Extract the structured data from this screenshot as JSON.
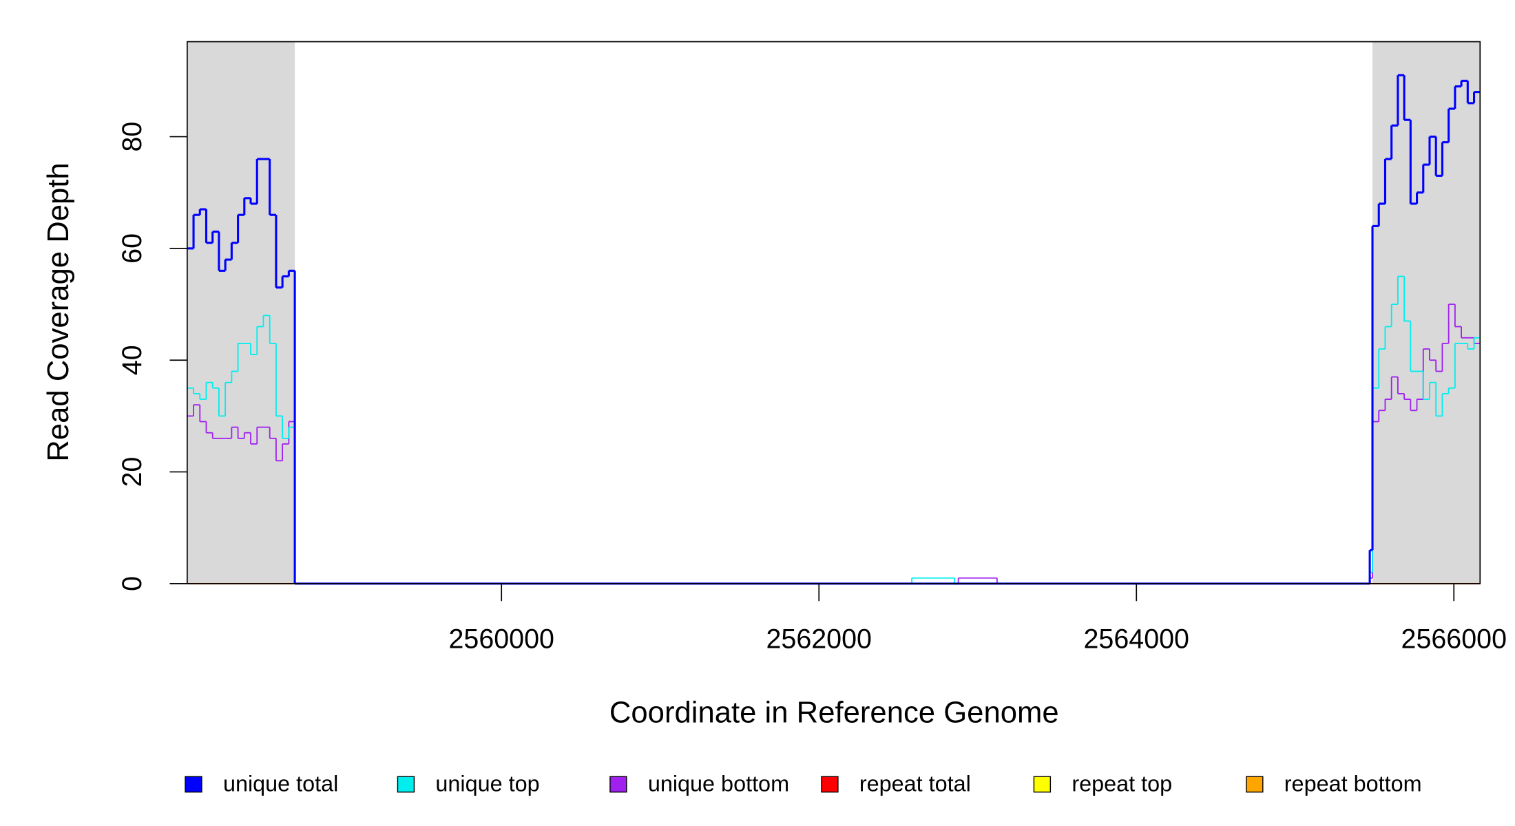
{
  "chart_data": {
    "type": "step",
    "xlabel": "Coordinate in Reference Genome",
    "ylabel": "Read Coverage Depth",
    "xlim": [
      2558020,
      2566165
    ],
    "ylim": [
      0,
      97
    ],
    "xticks": [
      2560000,
      2562000,
      2564000,
      2566000
    ],
    "yticks": [
      0,
      20,
      40,
      60,
      80
    ],
    "shaded_regions": [
      [
        2558020,
        2558698
      ],
      [
        2565487,
        2566165
      ]
    ],
    "shade_color": "#d9d9d9",
    "legend": "bottom",
    "x": [
      2558020,
      2558060,
      2558100,
      2558140,
      2558180,
      2558220,
      2558260,
      2558300,
      2558340,
      2558380,
      2558420,
      2558460,
      2558500,
      2558540,
      2558580,
      2558620,
      2558660,
      2558698,
      2562585,
      2562854,
      2562878,
      2563122,
      2565470,
      2565487,
      2565527,
      2565567,
      2565607,
      2565647,
      2565687,
      2565727,
      2565767,
      2565807,
      2565847,
      2565887,
      2565927,
      2565967,
      2566007,
      2566047,
      2566087,
      2566127
    ],
    "series": [
      {
        "name": "unique total",
        "color": "#0000ff",
        "width": 2.2,
        "values": [
          60,
          66,
          67,
          61,
          63,
          56,
          58,
          61,
          66,
          69,
          68,
          76,
          76,
          66,
          53,
          55,
          56,
          0,
          0,
          0,
          0,
          0,
          6,
          64,
          68,
          76,
          82,
          91,
          83,
          68,
          70,
          75,
          80,
          73,
          79,
          85,
          89,
          90,
          86,
          88
        ]
      },
      {
        "name": "unique top",
        "color": "#00eeee",
        "width": 1.3,
        "values": [
          35,
          34,
          33,
          36,
          35,
          30,
          36,
          38,
          43,
          43,
          41,
          46,
          48,
          43,
          30,
          26,
          28,
          0,
          1,
          0,
          0,
          0,
          2,
          35,
          42,
          46,
          50,
          55,
          47,
          38,
          38,
          33,
          36,
          30,
          34,
          35,
          43,
          43,
          42,
          44
        ]
      },
      {
        "name": "unique bottom",
        "color": "#a020f0",
        "width": 1.3,
        "values": [
          30,
          32,
          29,
          27,
          26,
          26,
          26,
          28,
          26,
          27,
          25,
          28,
          28,
          26,
          22,
          25,
          29,
          0,
          0,
          0,
          1,
          0,
          1,
          29,
          31,
          33,
          37,
          34,
          33,
          31,
          33,
          42,
          40,
          38,
          43,
          50,
          46,
          44,
          44,
          43
        ]
      },
      {
        "name": "repeat total",
        "color": "#ff0000",
        "width": 1.3,
        "values": [
          0,
          0,
          0,
          0,
          0,
          0,
          0,
          0,
          0,
          0,
          0,
          0,
          0,
          0,
          0,
          0,
          0,
          0,
          0,
          0,
          0,
          0,
          0,
          0,
          0,
          0,
          0,
          0,
          0,
          0,
          0,
          0,
          0,
          0,
          0,
          0,
          0,
          0,
          0,
          0
        ]
      },
      {
        "name": "repeat top",
        "color": "#ffff00",
        "width": 1.3,
        "values": [
          0,
          0,
          0,
          0,
          0,
          0,
          0,
          0,
          0,
          0,
          0,
          0,
          0,
          0,
          0,
          0,
          0,
          0,
          0,
          0,
          0,
          0,
          0,
          0,
          0,
          0,
          0,
          0,
          0,
          0,
          0,
          0,
          0,
          0,
          0,
          0,
          0,
          0,
          0,
          0
        ]
      },
      {
        "name": "repeat bottom",
        "color": "#ffa500",
        "width": 1.3,
        "values": [
          0,
          0,
          0,
          0,
          0,
          0,
          0,
          0,
          0,
          0,
          0,
          0,
          0,
          0,
          0,
          0,
          0,
          0,
          0,
          0,
          0,
          0,
          0,
          0,
          0,
          0,
          0,
          0,
          0,
          0,
          0,
          0,
          0,
          0,
          0,
          0,
          0,
          0,
          0,
          0
        ]
      }
    ]
  }
}
